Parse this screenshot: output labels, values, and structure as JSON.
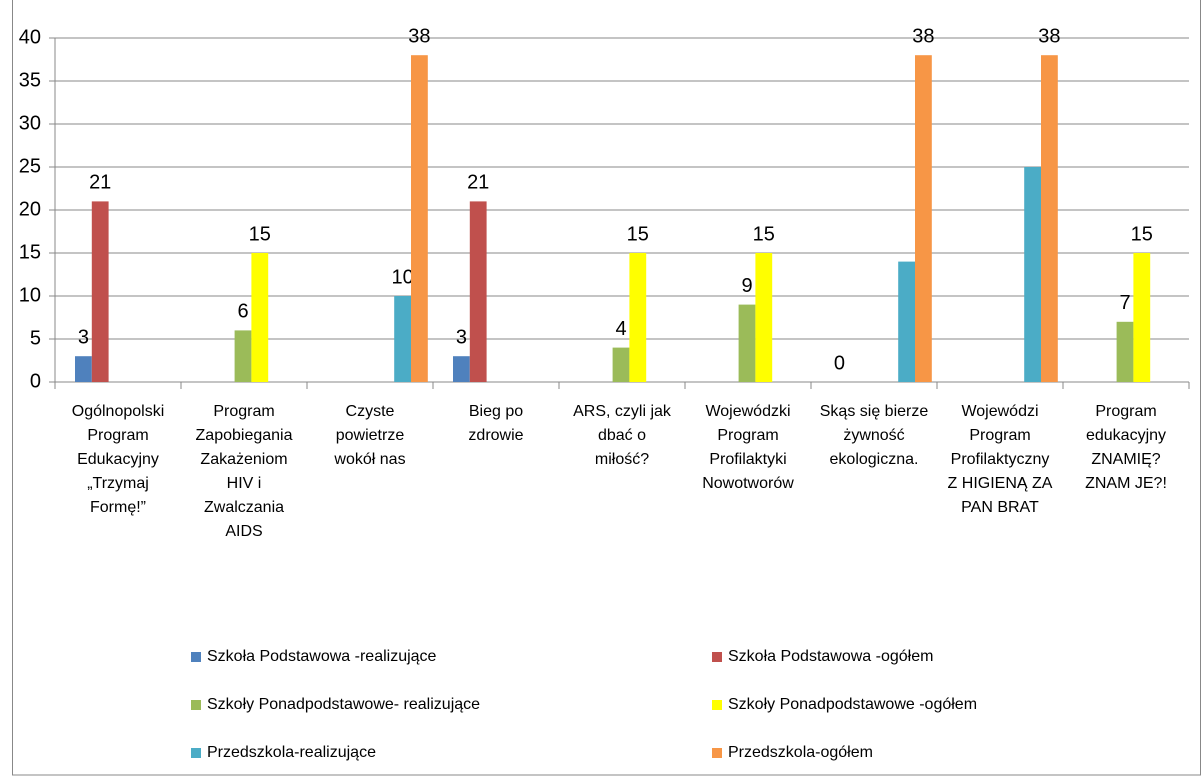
{
  "chart_data": {
    "type": "bar",
    "categories": [
      [
        "Ogólnopolski",
        "Program",
        "Edukacyjny",
        "„Trzymaj",
        "Formę!”"
      ],
      [
        "Program",
        "Zapobiegania",
        "Zakażeniom",
        "HIV i",
        "Zwalczania",
        "AIDS"
      ],
      [
        "Czyste",
        "powietrze",
        "wokół nas"
      ],
      [
        "Bieg po",
        "zdrowie"
      ],
      [
        "ARS, czyli jak",
        "dbać o",
        "miłość?"
      ],
      [
        "Wojewódzki",
        "Program",
        "Profilaktyki",
        "Nowotworów"
      ],
      [
        "Skąs się bierze",
        "żywność",
        "ekologiczna."
      ],
      [
        "Wojewódzi",
        "Program",
        "Profilaktyczny",
        "Z HIGIENĄ ZA",
        "PAN BRAT"
      ],
      [
        "Program",
        "edukacyjny",
        "ZNAMIĘ?",
        "ZNAM JE?!"
      ]
    ],
    "series": [
      {
        "name": "Szkoła Podstawowa -realizujące",
        "color": "#4f81bd",
        "values": [
          3,
          null,
          null,
          3,
          null,
          null,
          0,
          null,
          null
        ],
        "value_labels": [
          "3",
          null,
          null,
          "3",
          null,
          null,
          "0",
          null,
          null
        ]
      },
      {
        "name": "Szkoła Podstawowa -ogółem",
        "color": "#c0504d",
        "values": [
          21,
          null,
          null,
          21,
          null,
          null,
          null,
          null,
          null
        ],
        "value_labels": [
          "21",
          null,
          null,
          "21",
          null,
          null,
          null,
          null,
          null
        ]
      },
      {
        "name": "Szkoły Ponadpodstawowe- realizujące",
        "color": "#9bbb59",
        "values": [
          null,
          6,
          null,
          null,
          4,
          9,
          null,
          null,
          7
        ],
        "value_labels": [
          null,
          "6",
          null,
          null,
          "4",
          "9",
          null,
          null,
          "7"
        ]
      },
      {
        "name": "Szkoły Ponadpodstawowe -ogółem",
        "color": "#ffff00",
        "values": [
          null,
          15,
          null,
          null,
          15,
          15,
          null,
          null,
          15
        ],
        "value_labels": [
          null,
          "15",
          null,
          null,
          "15",
          "15",
          null,
          null,
          "15"
        ]
      },
      {
        "name": "Przedszkola-realizujące",
        "color": "#4bacc6",
        "values": [
          null,
          null,
          10,
          null,
          null,
          null,
          14,
          25,
          null
        ],
        "value_labels": [
          null,
          null,
          "10",
          null,
          null,
          null,
          null,
          null,
          null
        ]
      },
      {
        "name": "Przedszkola-ogółem",
        "color": "#f79646",
        "values": [
          null,
          null,
          38,
          null,
          null,
          null,
          38,
          38,
          null
        ],
        "value_labels": [
          null,
          null,
          "38",
          null,
          null,
          null,
          "38",
          "38",
          null
        ]
      }
    ],
    "ylim": [
      0,
      40
    ],
    "yticks": [
      0,
      5,
      10,
      15,
      20,
      25,
      30,
      35,
      40
    ],
    "grid": true,
    "legend": "bottom"
  }
}
